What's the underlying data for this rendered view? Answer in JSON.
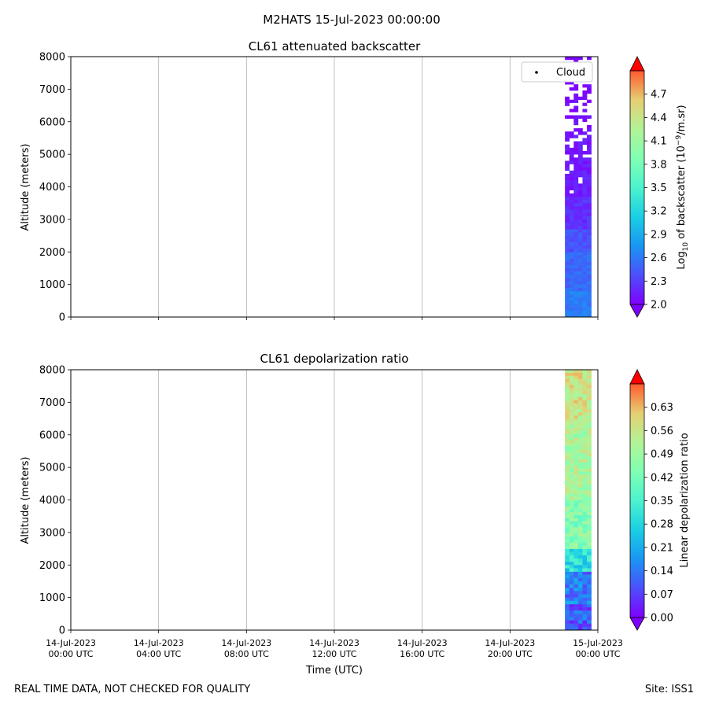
{
  "figure": {
    "suptitle": "M2HATS 15-Jul-2023 00:00:00",
    "footer_left": "REAL TIME DATA, NOT CHECKED FOR QUALITY",
    "footer_right": "Site: ISS1"
  },
  "chart_data": [
    {
      "type": "heatmap",
      "title": "CL61 attenuated backscatter",
      "xlabel": "",
      "ylabel": "Altitude (meters)",
      "ylim": [
        0,
        8000
      ],
      "yticks": [
        0,
        1000,
        2000,
        3000,
        4000,
        5000,
        6000,
        7000,
        8000
      ],
      "xlim_hours": [
        0,
        24
      ],
      "xticks_hours": [
        0,
        4,
        8,
        12,
        16,
        20,
        24
      ],
      "xtick_labels_shown": false,
      "data_time_range_hours": [
        22.5,
        23.7
      ],
      "grid": "vertical",
      "colormap": "rainbow",
      "colorbar": {
        "label": "Log10 of backscatter (10−9/m.sr)",
        "label_main": "Log",
        "label_sub": "10",
        "label_mid": " of backscatter (10",
        "label_sup": "−9",
        "label_end": "/m.sr)",
        "range": [
          2.0,
          5.0
        ],
        "ticks": [
          "2.0",
          "2.3",
          "2.6",
          "2.9",
          "3.2",
          "3.5",
          "3.8",
          "4.1",
          "4.4",
          "4.7"
        ],
        "extend": "both"
      },
      "legend": {
        "placement": "top-right",
        "entries": [
          {
            "label": "Cloud",
            "marker": "point",
            "color": "#000000"
          }
        ]
      },
      "profile": [
        {
          "alt_range": [
            0,
            800
          ],
          "value": 2.55,
          "coverage": 1.0
        },
        {
          "alt_range": [
            800,
            2000
          ],
          "value": 2.45,
          "coverage": 1.0
        },
        {
          "alt_range": [
            2000,
            2700
          ],
          "value": 2.35,
          "coverage": 1.0
        },
        {
          "alt_range": [
            2700,
            3700
          ],
          "value": 2.2,
          "coverage": 1.0
        },
        {
          "alt_range": [
            3700,
            4800
          ],
          "value": 2.12,
          "coverage": 0.9
        },
        {
          "alt_range": [
            4800,
            5700
          ],
          "value": 2.08,
          "coverage": 0.75
        },
        {
          "alt_range": [
            5700,
            6300
          ],
          "value": 2.05,
          "coverage": 0.45
        },
        {
          "alt_range": [
            6300,
            8000
          ],
          "value": 2.03,
          "coverage": 0.4
        }
      ]
    },
    {
      "type": "heatmap",
      "title": "CL61 depolarization ratio",
      "xlabel": "Time (UTC)",
      "ylabel": "Altitude (meters)",
      "ylim": [
        0,
        8000
      ],
      "yticks": [
        0,
        1000,
        2000,
        3000,
        4000,
        5000,
        6000,
        7000,
        8000
      ],
      "xlim_hours": [
        0,
        24
      ],
      "xticks_hours": [
        0,
        4,
        8,
        12,
        16,
        20,
        24
      ],
      "xtick_labels": [
        [
          "14-Jul-2023",
          "00:00 UTC"
        ],
        [
          "14-Jul-2023",
          "04:00 UTC"
        ],
        [
          "14-Jul-2023",
          "08:00 UTC"
        ],
        [
          "14-Jul-2023",
          "12:00 UTC"
        ],
        [
          "14-Jul-2023",
          "16:00 UTC"
        ],
        [
          "14-Jul-2023",
          "20:00 UTC"
        ],
        [
          "15-Jul-2023",
          "00:00 UTC"
        ]
      ],
      "data_time_range_hours": [
        22.5,
        23.7
      ],
      "grid": "vertical",
      "colormap": "rainbow",
      "colorbar": {
        "label": "Linear depolarization ratio",
        "range": [
          0.0,
          0.7
        ],
        "ticks": [
          "0.00",
          "0.07",
          "0.14",
          "0.21",
          "0.28",
          "0.35",
          "0.42",
          "0.49",
          "0.56",
          "0.63"
        ],
        "extend": "both"
      },
      "profile": [
        {
          "alt_range": [
            0,
            800
          ],
          "value": 0.09,
          "coverage": 1.0
        },
        {
          "alt_range": [
            800,
            1800
          ],
          "value": 0.13,
          "coverage": 1.0
        },
        {
          "alt_range": [
            1800,
            2500
          ],
          "value": 0.26,
          "coverage": 1.0
        },
        {
          "alt_range": [
            2500,
            4000
          ],
          "value": 0.4,
          "coverage": 1.0
        },
        {
          "alt_range": [
            4000,
            6500
          ],
          "value": 0.45,
          "coverage": 1.0
        },
        {
          "alt_range": [
            6500,
            8000
          ],
          "value": 0.5,
          "coverage": 1.0
        }
      ]
    }
  ]
}
